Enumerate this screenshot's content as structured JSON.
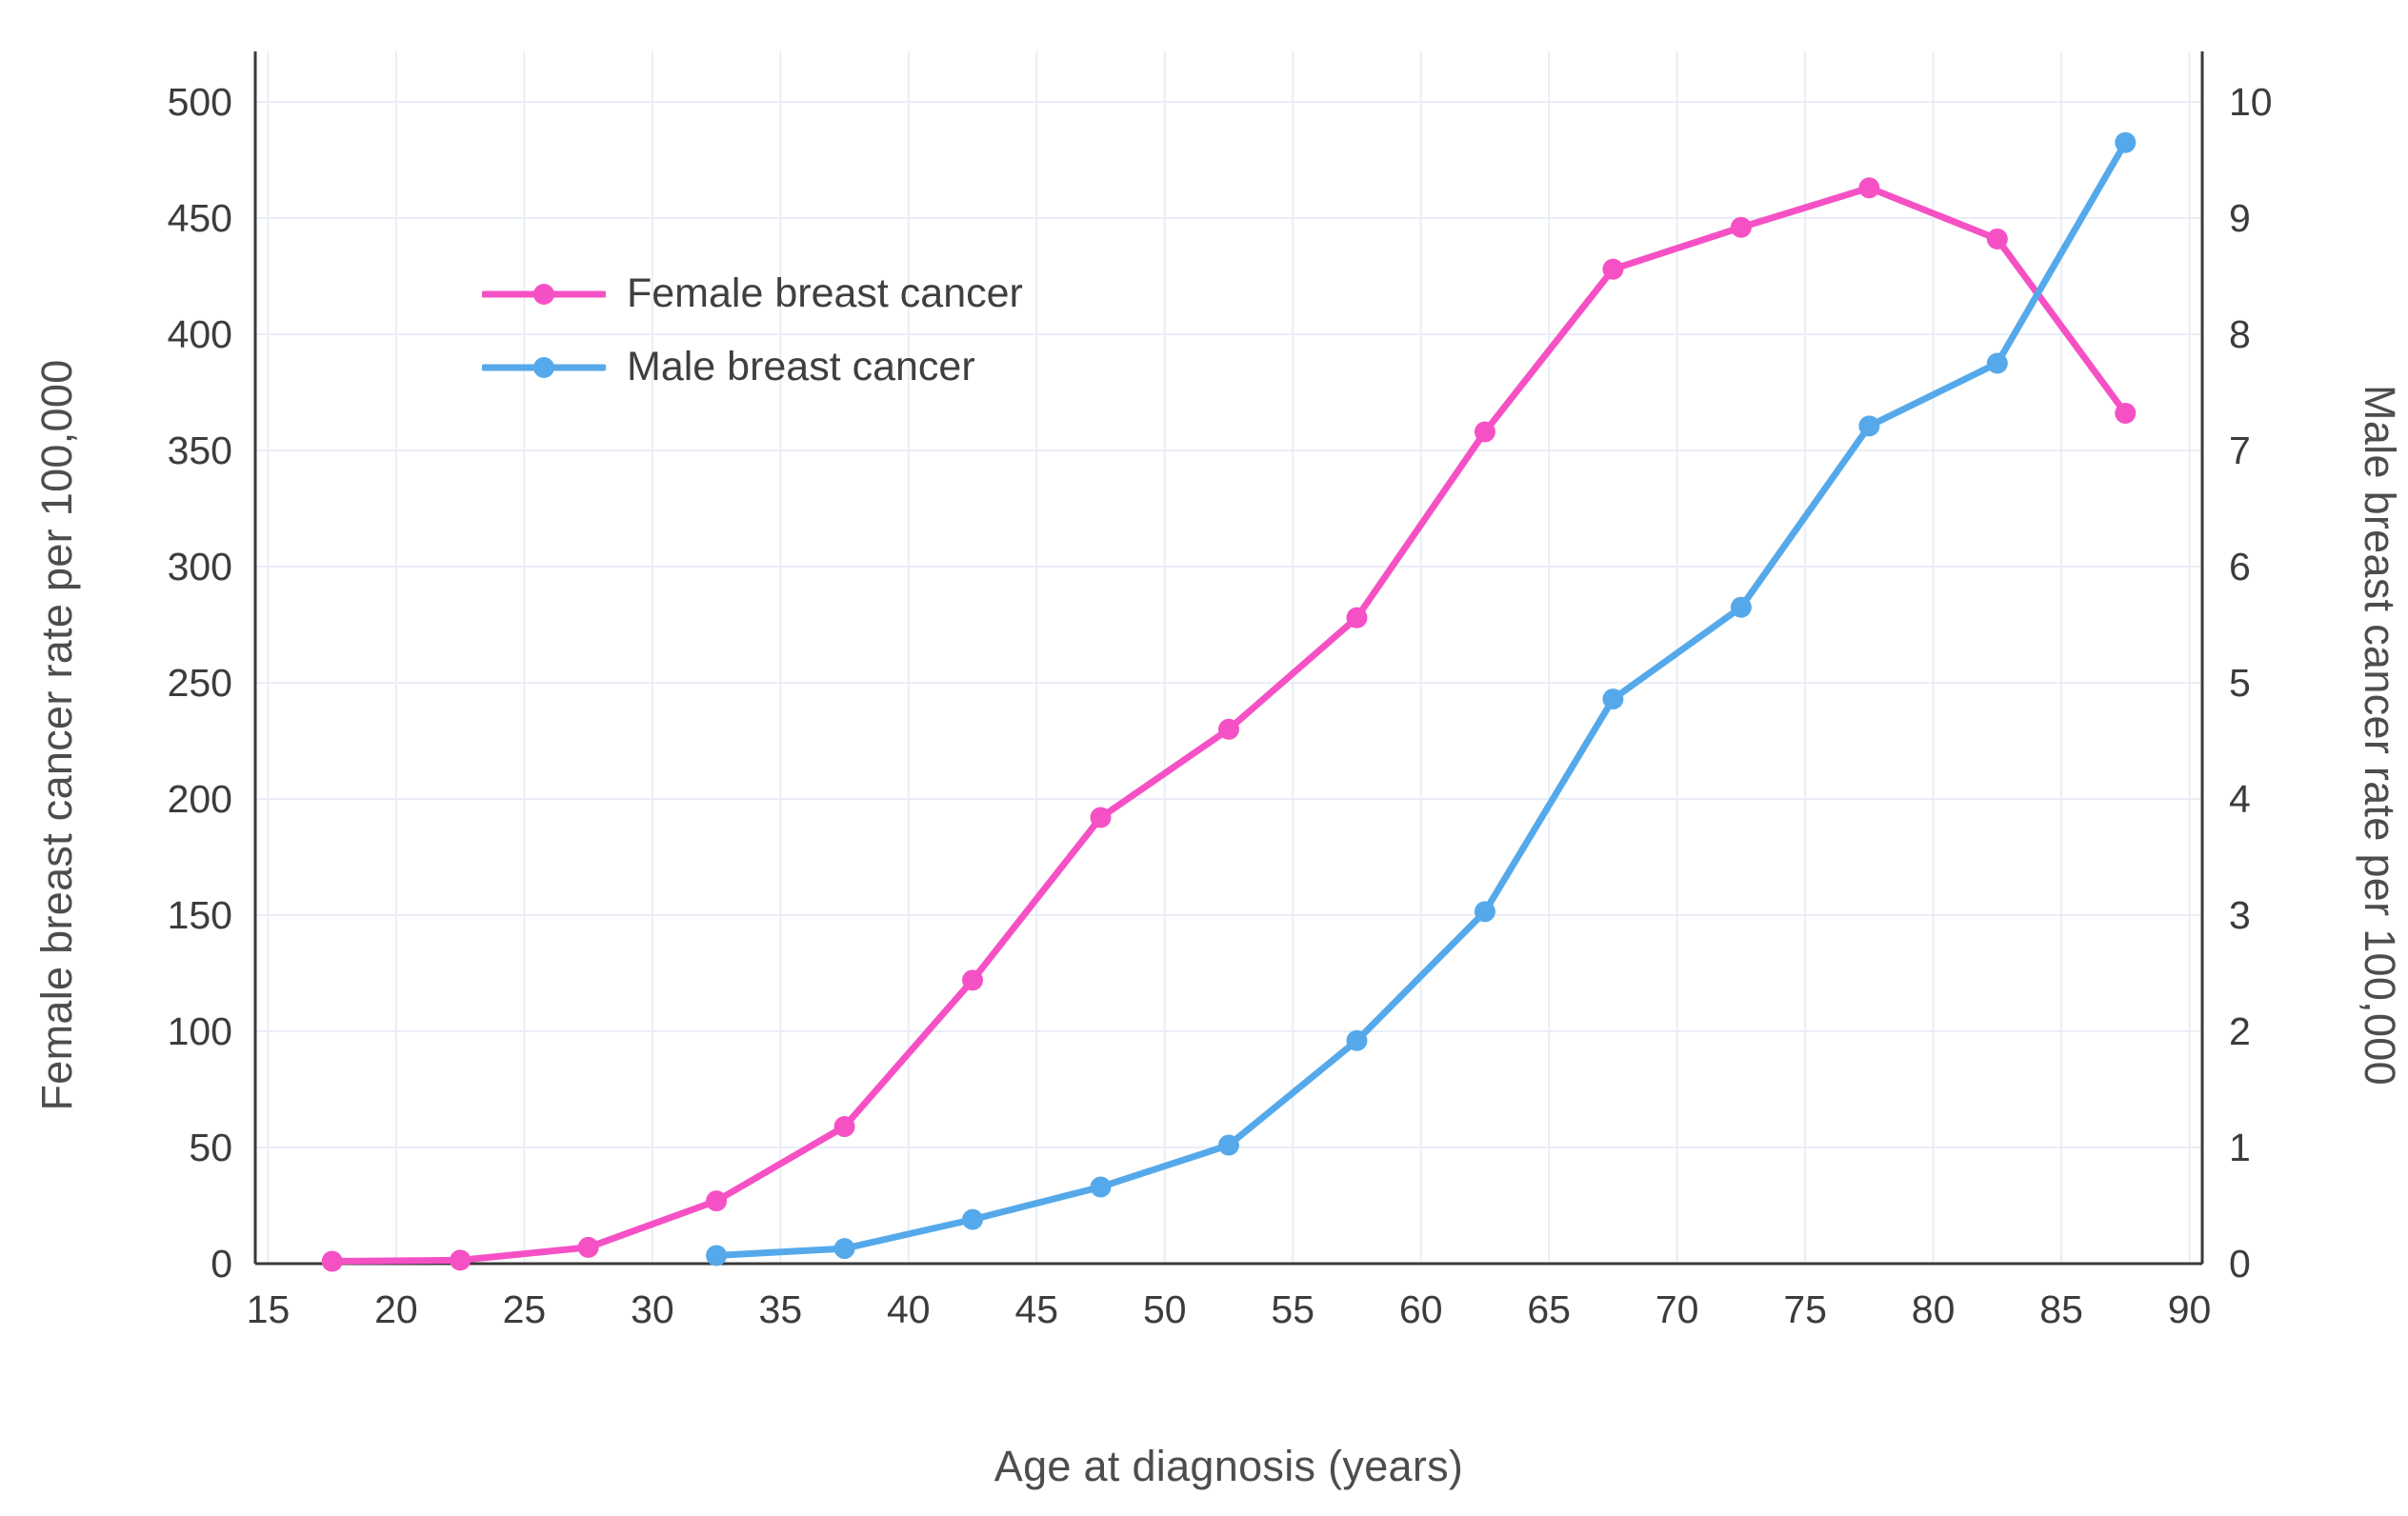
{
  "chart_data": {
    "type": "line",
    "title": "",
    "xlabel": "Age at diagnosis (years)",
    "grid": true,
    "legend_position": "inside-top-left",
    "grid_color": "#e9edf6",
    "axis_color": "#3a3a3a",
    "tick_label_color": "#3c3c3c",
    "axes": {
      "x": {
        "range": [
          14.5,
          90.5
        ],
        "ticks": [
          15,
          20,
          25,
          30,
          35,
          40,
          45,
          50,
          55,
          60,
          65,
          70,
          75,
          80,
          85,
          90
        ]
      },
      "left": {
        "label": "Female breast cancer rate per 100,000",
        "range": [
          0,
          500
        ],
        "ticks": [
          0,
          50,
          100,
          150,
          200,
          250,
          300,
          350,
          400,
          450,
          500
        ]
      },
      "right": {
        "label": "Male breast cancer rate per 100,000",
        "range": [
          0,
          10
        ],
        "ticks": [
          0,
          1,
          2,
          3,
          4,
          5,
          6,
          7,
          8,
          9,
          10
        ]
      }
    },
    "series": [
      {
        "name": "Female breast cancer",
        "axis": "left",
        "color": "#f551c5",
        "x": [
          17.5,
          22.5,
          27.5,
          32.5,
          37.5,
          42.5,
          47.5,
          52.5,
          57.5,
          62.5,
          67.5,
          72.5,
          77.5,
          82.5,
          87.5
        ],
        "y": [
          1,
          1.5,
          7,
          27,
          59,
          122,
          192,
          230,
          278,
          358,
          428,
          446,
          463,
          441,
          366
        ]
      },
      {
        "name": "Male breast cancer",
        "axis": "right",
        "color": "#55a9ea",
        "x": [
          32.5,
          37.5,
          42.5,
          47.5,
          52.5,
          57.5,
          62.5,
          67.5,
          72.5,
          77.5,
          82.5,
          87.5
        ],
        "y": [
          0.07,
          0.13,
          0.38,
          0.66,
          1.02,
          1.92,
          3.03,
          4.86,
          5.65,
          7.21,
          7.75,
          9.65
        ]
      }
    ]
  }
}
